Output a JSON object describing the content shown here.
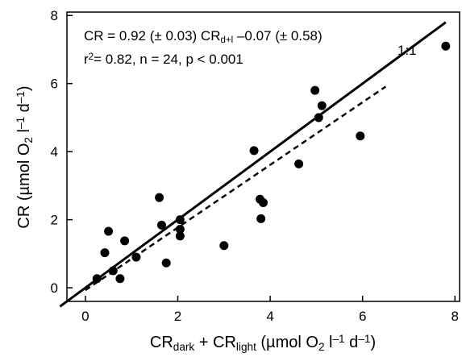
{
  "chart_data": {
    "type": "scatter",
    "xlim": [
      -0.4,
      8.1
    ],
    "ylim": [
      -0.4,
      8.1
    ],
    "xticks": [
      "0",
      "2",
      "4",
      "6",
      "8"
    ],
    "yticks": [
      "0",
      "2",
      "4",
      "6",
      "8"
    ],
    "tick_values": [
      0,
      2,
      4,
      6,
      8
    ],
    "xlabel": {
      "parts": [
        "CR",
        "dark",
        " + CR",
        "light",
        " (µmol O",
        "2",
        " l",
        "–1",
        " d",
        "–1",
        ")"
      ]
    },
    "ylabel": {
      "parts": [
        "CR (µmol O",
        "2",
        " l",
        "–1",
        " d",
        "–1",
        ")"
      ]
    },
    "equation": {
      "line1": [
        "CR = 0.92 (± 0.03) CR",
        "d+l",
        " –0.07 (± 0.58)"
      ],
      "line2": [
        "r",
        "2",
        "= 0.82, n = 24, p < 0.001"
      ]
    },
    "one_to_one_label": "1:1",
    "one_to_one_line": {
      "x": [
        -0.55,
        7.8
      ],
      "y": [
        -0.55,
        7.8
      ]
    },
    "regression_line": {
      "x": [
        0.0,
        6.5
      ],
      "y": [
        -0.07,
        5.91
      ]
    },
    "points": [
      {
        "x": 0.25,
        "y": 0.27
      },
      {
        "x": 0.42,
        "y": 1.03
      },
      {
        "x": 0.5,
        "y": 1.66
      },
      {
        "x": 0.6,
        "y": 0.5
      },
      {
        "x": 0.75,
        "y": 0.27
      },
      {
        "x": 0.85,
        "y": 1.38
      },
      {
        "x": 1.1,
        "y": 0.9
      },
      {
        "x": 1.6,
        "y": 2.65
      },
      {
        "x": 1.65,
        "y": 1.84
      },
      {
        "x": 1.75,
        "y": 0.73
      },
      {
        "x": 2.05,
        "y": 2.0
      },
      {
        "x": 2.05,
        "y": 1.72
      },
      {
        "x": 2.05,
        "y": 1.52
      },
      {
        "x": 3.0,
        "y": 1.24
      },
      {
        "x": 3.65,
        "y": 4.03
      },
      {
        "x": 3.78,
        "y": 2.6
      },
      {
        "x": 3.8,
        "y": 2.03
      },
      {
        "x": 3.85,
        "y": 2.5
      },
      {
        "x": 4.62,
        "y": 3.64
      },
      {
        "x": 4.97,
        "y": 5.8
      },
      {
        "x": 5.05,
        "y": 5.0
      },
      {
        "x": 5.12,
        "y": 5.35
      },
      {
        "x": 5.95,
        "y": 4.46
      },
      {
        "x": 7.8,
        "y": 7.1
      }
    ]
  }
}
